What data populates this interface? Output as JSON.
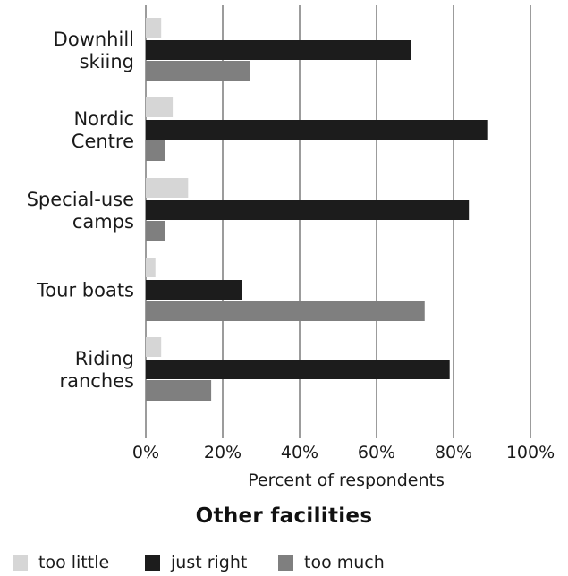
{
  "chart_data": {
    "type": "bar",
    "orientation": "horizontal",
    "title": "Other facilities",
    "xlabel": "Percent of respondents",
    "ylabel": "",
    "xlim": [
      0,
      100
    ],
    "x_ticks": [
      0,
      20,
      40,
      60,
      80,
      100
    ],
    "x_tick_labels": [
      "0%",
      "20%",
      "40%",
      "60%",
      "80%",
      "100%"
    ],
    "grid": true,
    "legend_position": "bottom",
    "categories": [
      [
        "Downhill",
        "skiing"
      ],
      [
        "Nordic",
        "Centre"
      ],
      [
        "Special-use",
        "camps"
      ],
      [
        "Tour boats"
      ],
      [
        "Riding",
        "ranches"
      ]
    ],
    "series": [
      {
        "name": "too little",
        "color": "#d6d6d6",
        "values": [
          4,
          7,
          11,
          2.5,
          4
        ]
      },
      {
        "name": "just right",
        "color": "#1c1c1c",
        "values": [
          69,
          89,
          84,
          25,
          79
        ]
      },
      {
        "name": "too much",
        "color": "#7f7f7f",
        "values": [
          27,
          5,
          5,
          72.5,
          17
        ]
      }
    ]
  }
}
